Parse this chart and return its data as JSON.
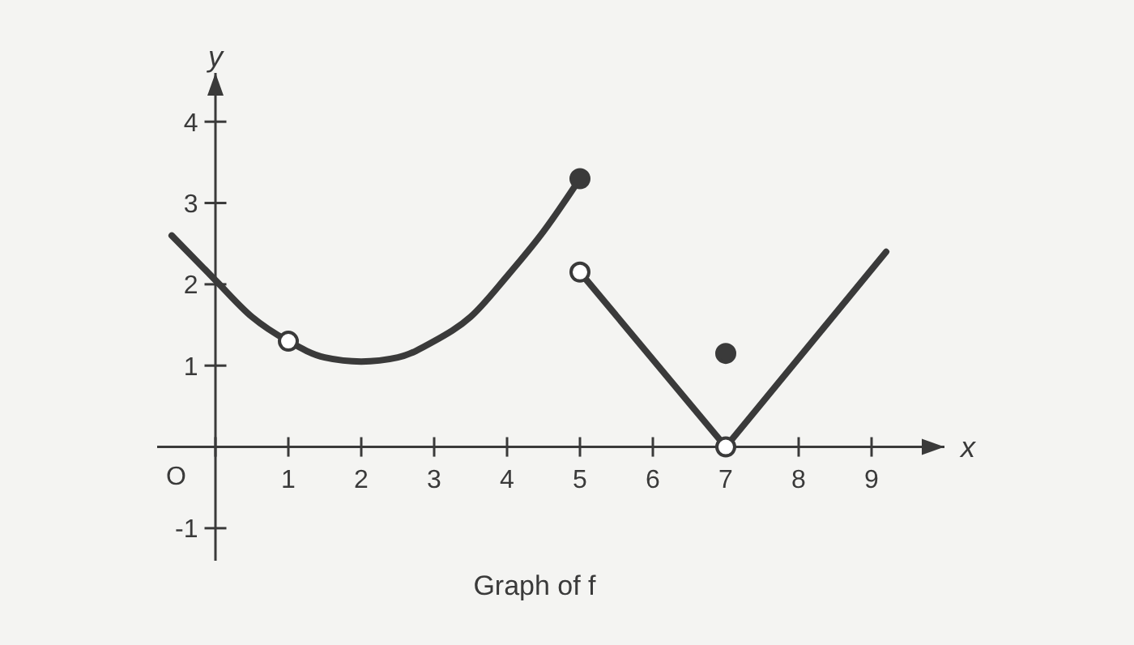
{
  "chart_data": {
    "type": "line",
    "xlabel": "x",
    "ylabel": "y",
    "annotations": [
      "Graph of f",
      "O"
    ],
    "xlim": [
      -0.8,
      10
    ],
    "ylim": [
      -1.4,
      4.6
    ],
    "xticks": [
      {
        "value": 0,
        "label": null
      },
      1,
      2,
      3,
      4,
      5,
      6,
      7,
      8,
      9
    ],
    "yticks": [
      -1,
      1,
      2,
      3,
      4
    ],
    "series": [
      {
        "color": "#3a3a3a",
        "x": [
          -0.6,
          0,
          0.5,
          1,
          1.5,
          2,
          2.5,
          3,
          3.5,
          4,
          4.5,
          5
        ],
        "values": [
          2.6,
          2.05,
          1.6,
          1.3,
          1.1,
          1.05,
          1.1,
          1.3,
          1.6,
          2.1,
          2.65,
          3.3
        ]
      },
      {
        "color": "#3a3a3a",
        "x": [
          5,
          7
        ],
        "values": [
          2.15,
          0
        ]
      },
      {
        "color": "#3a3a3a",
        "x": [
          7,
          9.2
        ],
        "values": [
          0,
          2.4
        ]
      },
      {
        "type": "scatter",
        "marker": "circle",
        "color": "#ffffff",
        "x": [
          1,
          5,
          7
        ],
        "values": [
          1.3,
          2.15,
          0
        ]
      },
      {
        "type": "scatter",
        "marker": "circle",
        "color": "#3a3a3a",
        "x": [
          5,
          7
        ],
        "values": [
          3.3,
          1.15
        ]
      }
    ]
  }
}
